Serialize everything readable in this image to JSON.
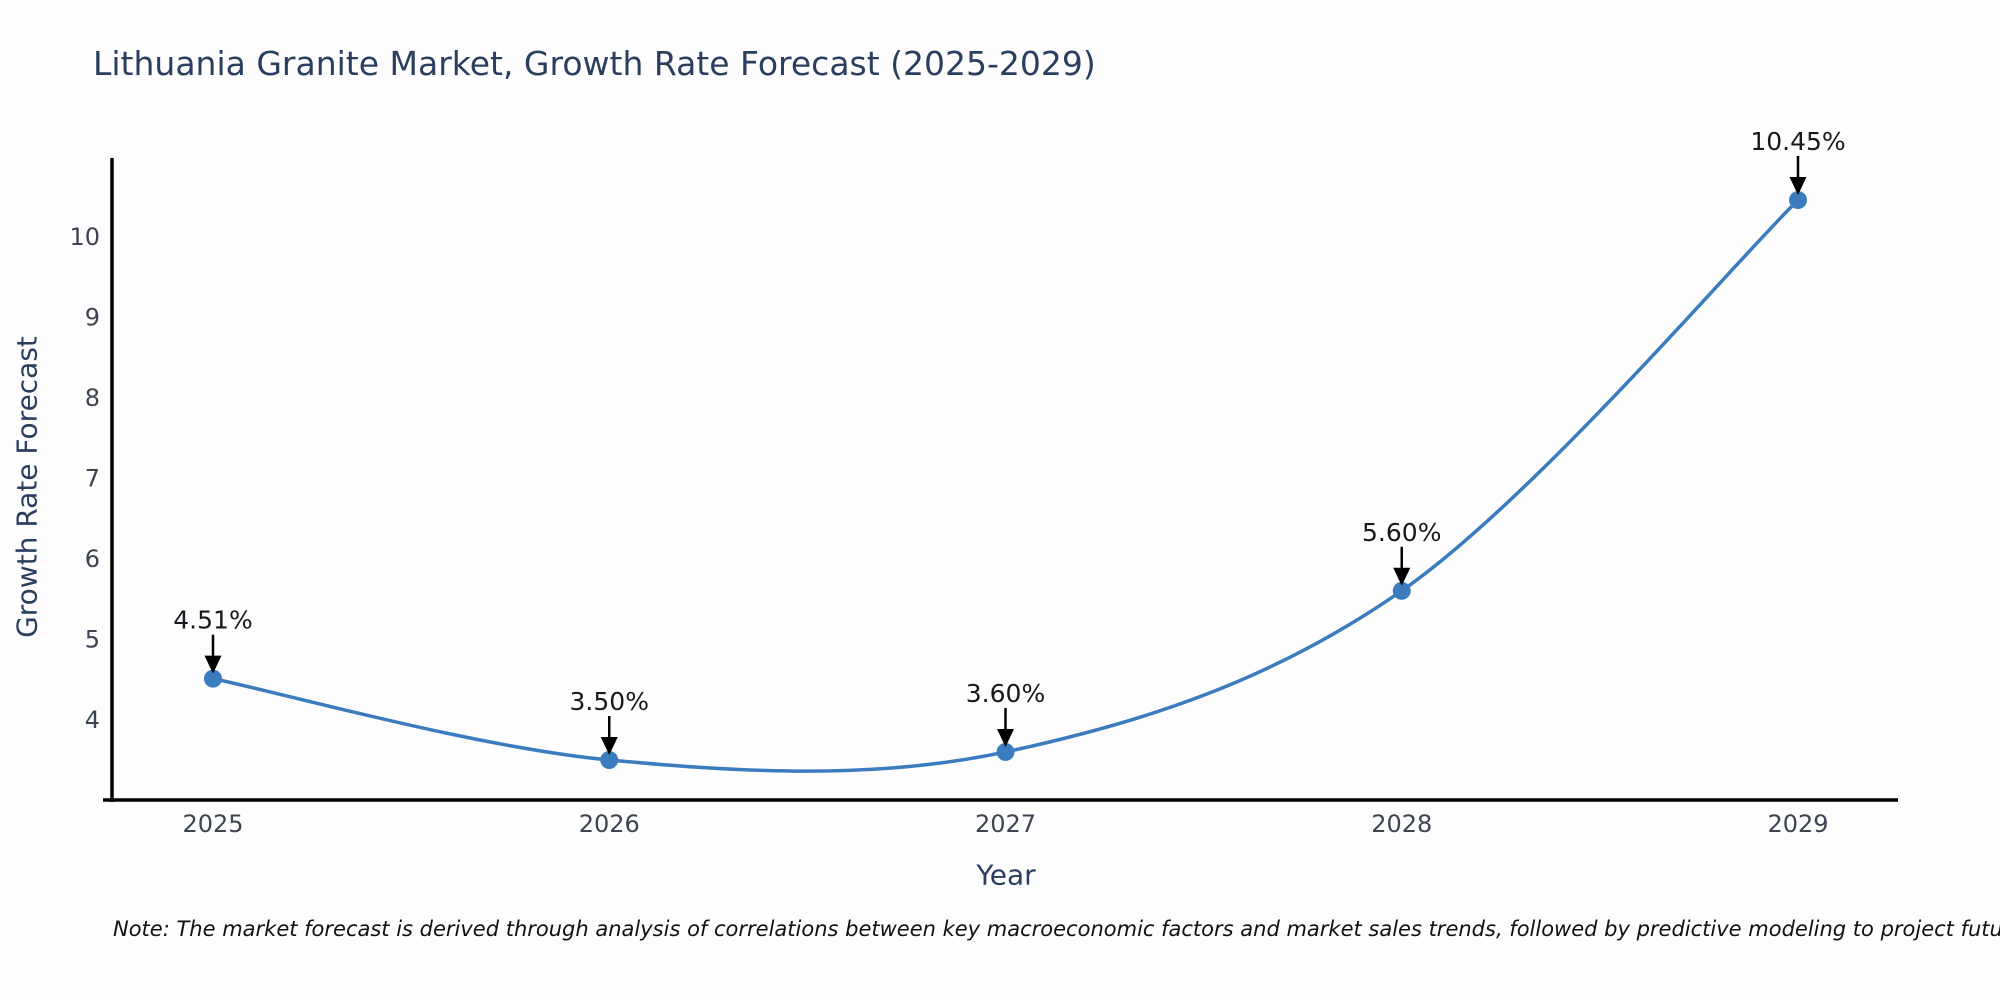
{
  "chart_data": {
    "type": "line",
    "title": "Lithuania Granite Market, Growth Rate Forecast (2025-2029)",
    "xlabel": "Year",
    "ylabel": "Growth Rate Forecast",
    "categories": [
      "2025",
      "2026",
      "2027",
      "2028",
      "2029"
    ],
    "x": [
      2025,
      2026,
      2027,
      2028,
      2029
    ],
    "series": [
      {
        "name": "Growth Rate Forecast",
        "values": [
          4.51,
          3.5,
          3.6,
          5.6,
          10.45
        ]
      }
    ],
    "point_labels": [
      "4.51%",
      "3.50%",
      "3.60%",
      "5.60%",
      "10.45%"
    ],
    "y_ticks": [
      4,
      5,
      6,
      7,
      8,
      9,
      10
    ],
    "ylim": [
      3.0,
      11.0
    ],
    "grid": false,
    "legend": false,
    "line_shape": "spline",
    "marker": "circle",
    "colors": {
      "line": "#3a7cbe",
      "marker": "#3a7cbe",
      "axis": "#000000",
      "arrow": "#000000",
      "title_text": "#2a3f5f",
      "tick_text": "#3d4451",
      "annotation_text": "#16191d",
      "background": "#fdfdfd"
    }
  },
  "note": "Note: The market forecast is derived through analysis of correlations between key macroeconomic factors and market sales trends, followed by predictive modeling to project future sales"
}
